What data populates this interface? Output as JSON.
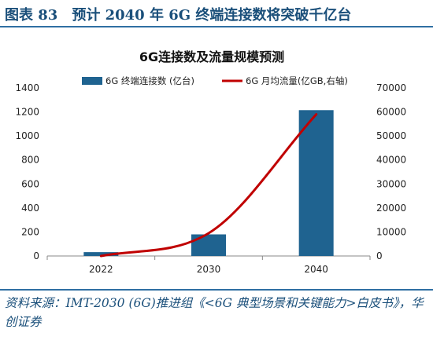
{
  "header": {
    "title": "图表 83　预计 2040 年 6G 终端连接数将突破千亿台"
  },
  "footer": {
    "source": "资料来源：IMT-2030 (6G)推进组《<6G 典型场景和关键能力>白皮书》，华创证券"
  },
  "colors": {
    "bar": "#1f6390",
    "line": "#c00000",
    "accent": "#1a4f7a"
  },
  "chart_data": {
    "type": "bar+line",
    "title": "6G连接数及流量规模预测",
    "categories": [
      "2022",
      "2030",
      "2040"
    ],
    "series": [
      {
        "name": "6G 终端连接数 (亿台)",
        "type": "bar",
        "axis": "left",
        "values": [
          32,
          180,
          1215
        ]
      },
      {
        "name": "6G 月均流量(亿GB,右轴)",
        "type": "line",
        "axis": "right",
        "smooth": true,
        "values": [
          0,
          9500,
          59000
        ]
      }
    ],
    "y_left": {
      "min": 0,
      "max": 1400,
      "ticks": [
        "0",
        "200",
        "400",
        "600",
        "800",
        "1000",
        "1200",
        "1400"
      ]
    },
    "y_right": {
      "min": 0,
      "max": 70000,
      "ticks": [
        "0",
        "10000",
        "20000",
        "30000",
        "40000",
        "50000",
        "60000",
        "70000"
      ]
    },
    "legend": "top",
    "grid": false
  }
}
